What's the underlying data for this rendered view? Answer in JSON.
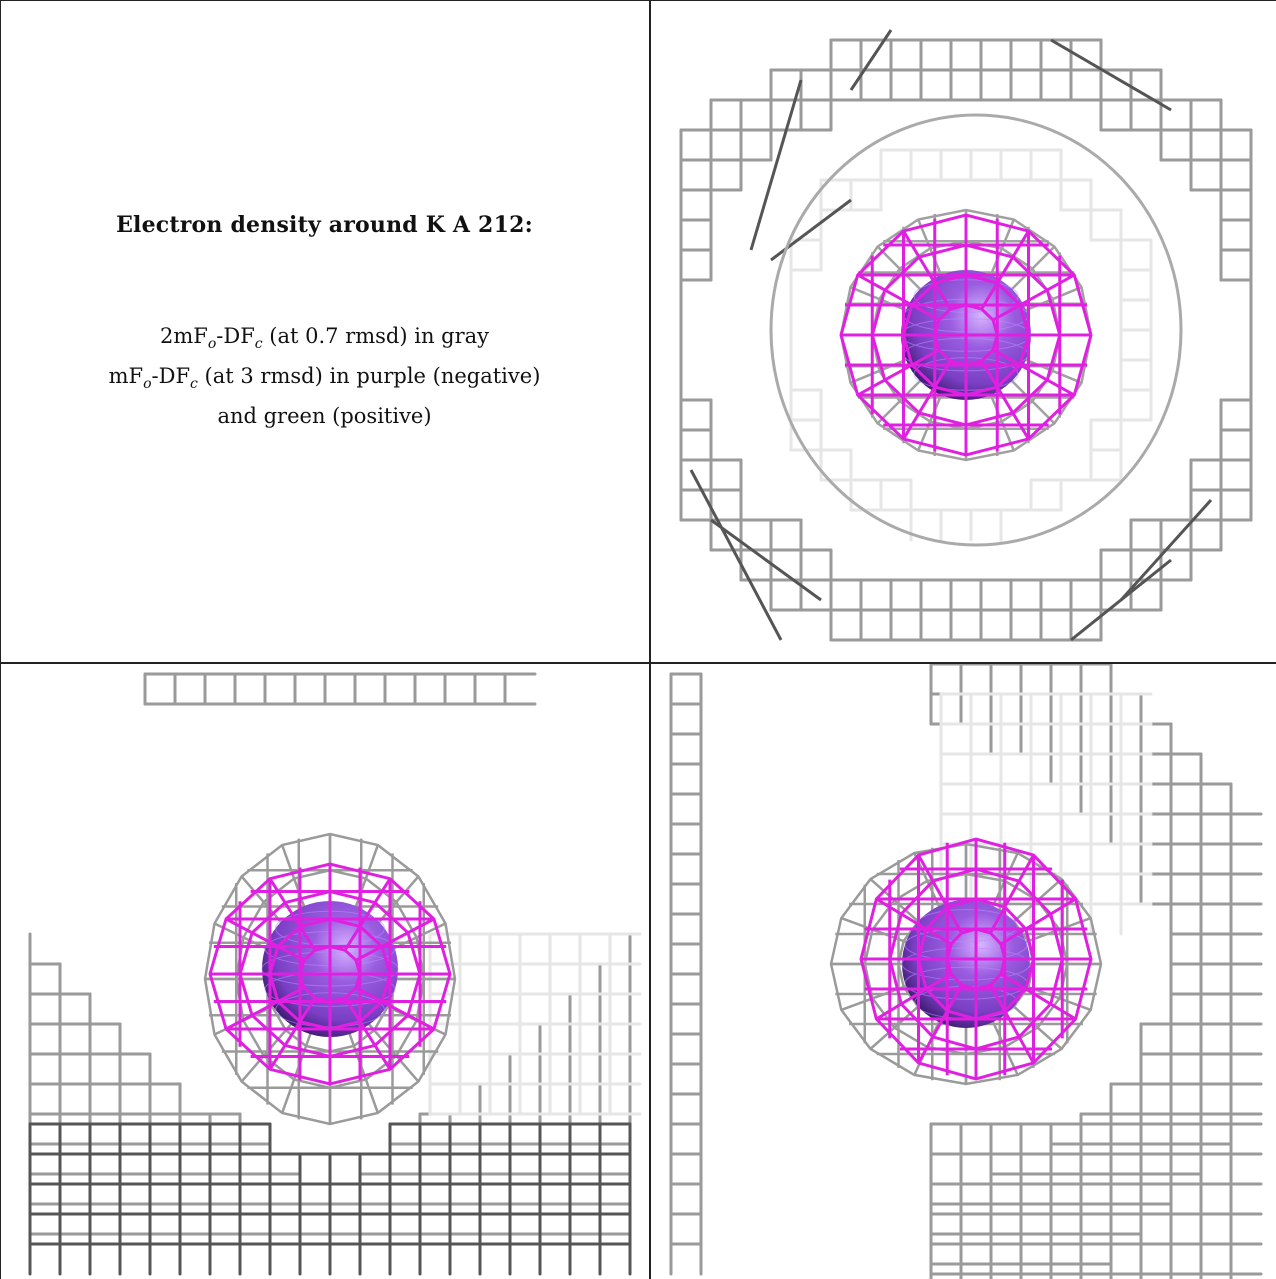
{
  "title": "Electron density around K A 212:",
  "legend": {
    "line1": {
      "pre": "2mF",
      "sub1": "o",
      "mid": "-DF",
      "sub2": "c",
      "post": " (at 0.7 rmsd) in gray"
    },
    "line2": {
      "pre": "mF",
      "sub1": "o",
      "mid": "-DF",
      "sub2": "c",
      "post": " (at 3 rmsd) in purple (negative)"
    },
    "line3": "and green (positive)"
  },
  "colors": {
    "mesh_gray": "#9a9a9a",
    "mesh_dark": "#555555",
    "mesh_light": "#e6e6e6",
    "negative_mesh": "#e020e0",
    "ion_sphere": "#7a3fc4"
  },
  "views": [
    "top-view",
    "front-view",
    "side-view"
  ]
}
